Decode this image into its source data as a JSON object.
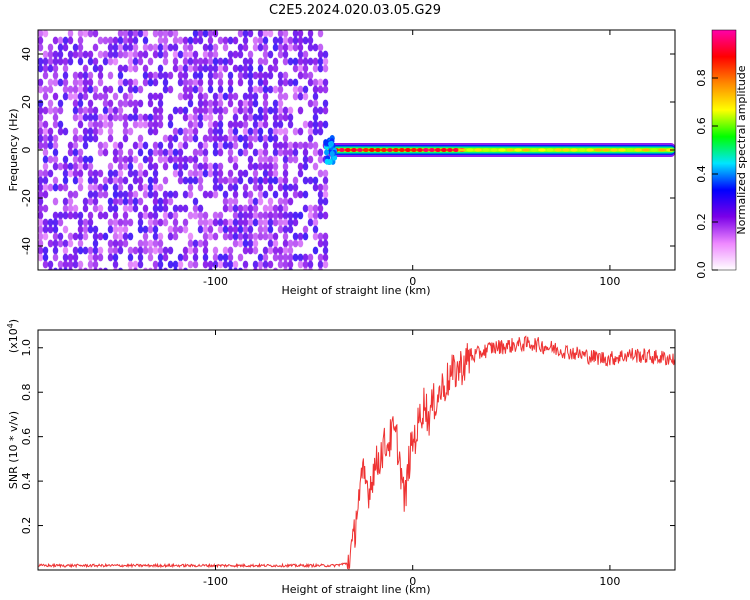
{
  "title": "C2E5.2024.020.03.05.G29",
  "chart_data": [
    {
      "type": "heatmap",
      "xlabel": "Height of straight line (km)",
      "ylabel": "Frequency (Hz)",
      "xlim": [
        -190,
        133
      ],
      "ylim": [
        -50,
        50
      ],
      "xticks": [
        -100,
        0,
        100
      ],
      "yticks": [
        -40,
        -20,
        0,
        20,
        40
      ],
      "noise_region_x": [
        -190,
        -43
      ],
      "signal_region_x": [
        -43,
        133
      ],
      "signal_center_freq": 0,
      "colorbar": {
        "label": "Normalized spectral amplitude",
        "range": [
          0,
          1
        ],
        "ticks": [
          "0.0",
          "0.2",
          "0.4",
          "0.6",
          "0.8"
        ],
        "colors": [
          "#ffffff",
          "#ee88ff",
          "#7a00e8",
          "#0000ff",
          "#00e5ff",
          "#00ff00",
          "#ffff00",
          "#ff8800",
          "#ff0000",
          "#ff00aa"
        ]
      }
    },
    {
      "type": "line",
      "xlabel": "Height of straight line (km)",
      "ylabel": "SNR (10 * v/v)",
      "y_multiplier": "(x10",
      "y_multiplier_exp": "4",
      "y_multiplier_close": ")",
      "xlim": [
        -190,
        133
      ],
      "ylim": [
        0,
        1.08
      ],
      "xticks": [
        -100,
        0,
        100
      ],
      "yticks": [
        "0.2",
        "0.4",
        "0.6",
        "0.8",
        "1.0"
      ],
      "color": "#ee3333",
      "series": [
        {
          "x": [
            -190,
            -150,
            -100,
            -60,
            -40,
            -33,
            -30,
            -28,
            -25,
            -22,
            -20,
            -18,
            -15,
            -12,
            -10,
            -8,
            -6,
            -4,
            -2,
            0,
            2,
            4,
            6,
            8,
            10,
            15,
            20,
            25,
            30,
            35,
            40,
            50,
            60,
            70,
            80,
            90,
            100,
            110,
            120,
            133
          ],
          "y": [
            0.02,
            0.02,
            0.02,
            0.02,
            0.02,
            0.03,
            0.12,
            0.3,
            0.42,
            0.36,
            0.45,
            0.48,
            0.55,
            0.58,
            0.62,
            0.58,
            0.45,
            0.3,
            0.48,
            0.58,
            0.62,
            0.7,
            0.76,
            0.68,
            0.74,
            0.82,
            0.88,
            0.92,
            0.96,
            0.98,
            1.0,
            1.01,
            1.02,
            1.0,
            0.98,
            0.96,
            0.95,
            0.97,
            0.96,
            0.95
          ]
        }
      ]
    }
  ]
}
